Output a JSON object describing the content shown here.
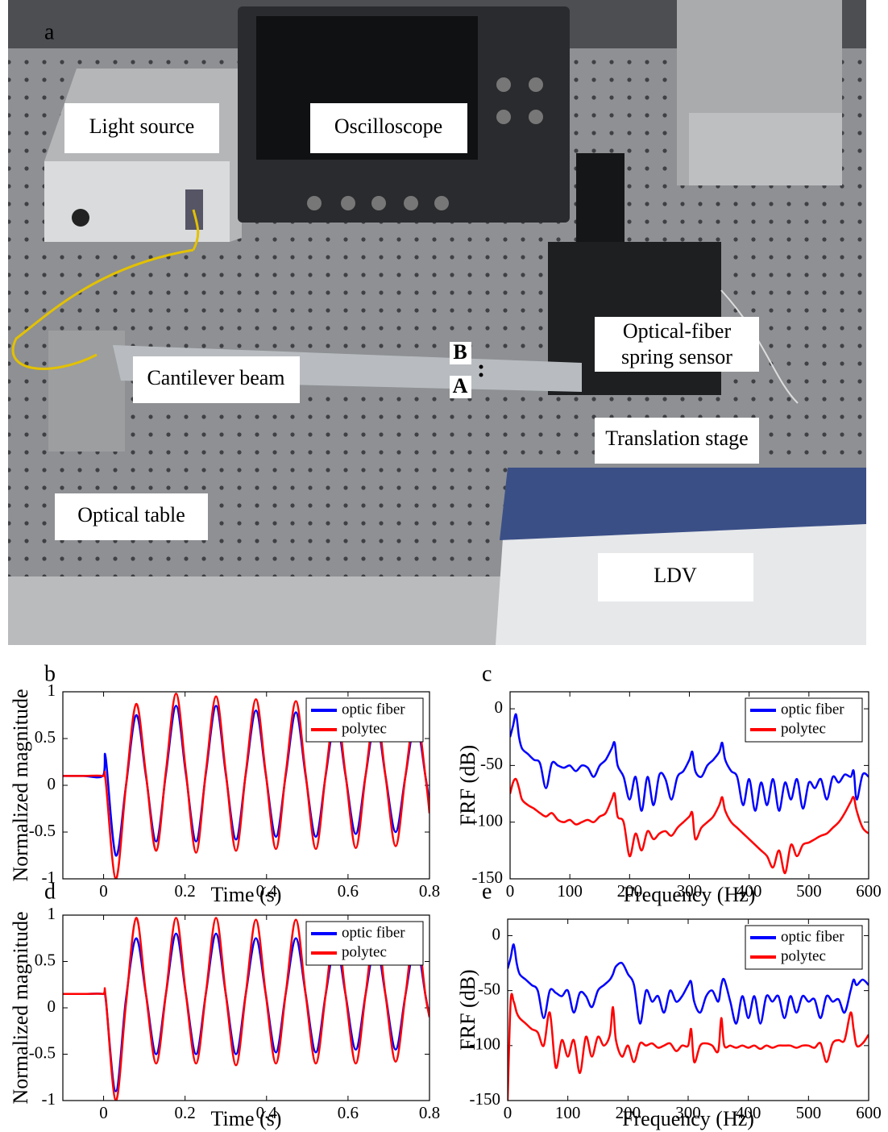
{
  "photo": {
    "panel_label": "a",
    "labels": [
      {
        "lines": [
          "Light source"
        ]
      },
      {
        "lines": [
          "Oscilloscope"
        ]
      },
      {
        "lines": [
          "Optical-fiber",
          "spring sensor"
        ]
      },
      {
        "lines": [
          "Cantilever beam"
        ]
      },
      {
        "lines": [
          "Translation stage"
        ]
      },
      {
        "lines": [
          "Optical table"
        ]
      },
      {
        "lines": [
          "LDV"
        ]
      }
    ],
    "points": [
      "B",
      "A"
    ]
  },
  "chart_data": [
    {
      "type": "line",
      "panel": "b",
      "xlabel": "Time (s)",
      "ylabel": "Normalized magnitude",
      "x": [
        -0.1,
        -0.05,
        -0.002,
        0.005,
        0.03,
        0.055,
        0.08,
        0.104,
        0.129,
        0.153,
        0.178,
        0.202,
        0.227,
        0.251,
        0.276,
        0.3,
        0.325,
        0.349,
        0.374,
        0.398,
        0.423,
        0.447,
        0.472,
        0.496,
        0.521,
        0.545,
        0.57,
        0.594,
        0.619,
        0.643,
        0.668,
        0.692,
        0.717,
        0.741,
        0.766,
        0.79,
        0.8
      ],
      "xlim": [
        -0.1,
        0.8
      ],
      "xticks": [
        0,
        0.2,
        0.4,
        0.6,
        0.8
      ],
      "ylim": [
        -1,
        1
      ],
      "yticks": [
        -1,
        -0.5,
        0,
        0.5,
        1
      ],
      "legend": "upper right",
      "series": [
        {
          "name": "optic fiber",
          "color": "#0000ff",
          "values": [
            0.1,
            0.1,
            0.1,
            0.3,
            -0.75,
            0.0,
            0.75,
            0.1,
            -0.6,
            0.12,
            0.85,
            0.12,
            -0.6,
            0.12,
            0.85,
            0.12,
            -0.58,
            0.12,
            0.8,
            0.12,
            -0.55,
            0.1,
            0.78,
            0.1,
            -0.55,
            0.1,
            0.72,
            0.1,
            -0.52,
            0.1,
            0.7,
            0.1,
            -0.5,
            0.1,
            0.68,
            0.1,
            -0.2
          ]
        },
        {
          "name": "polytec",
          "color": "#ff0000",
          "values": [
            0.1,
            0.1,
            0.1,
            0.05,
            -1,
            0.0,
            0.87,
            0.12,
            -0.7,
            0.15,
            0.98,
            0.15,
            -0.72,
            0.14,
            0.95,
            0.14,
            -0.7,
            0.13,
            0.92,
            0.13,
            -0.68,
            0.12,
            0.9,
            0.12,
            -0.68,
            0.11,
            0.85,
            0.11,
            -0.67,
            0.1,
            0.82,
            0.1,
            -0.65,
            0.1,
            0.8,
            0.1,
            -0.3
          ]
        }
      ]
    },
    {
      "type": "line",
      "panel": "c",
      "xlabel": "Frequency (Hz)",
      "ylabel": "FRF (dB)",
      "x": [
        0,
        5,
        10,
        15,
        20,
        30,
        40,
        50,
        60,
        70,
        80,
        90,
        100,
        110,
        120,
        130,
        140,
        150,
        160,
        170,
        175,
        180,
        190,
        200,
        210,
        220,
        230,
        240,
        250,
        260,
        270,
        280,
        290,
        300,
        305,
        310,
        320,
        330,
        340,
        350,
        355,
        360,
        370,
        380,
        390,
        400,
        410,
        420,
        430,
        440,
        450,
        460,
        470,
        480,
        490,
        500,
        510,
        520,
        530,
        540,
        550,
        560,
        570,
        575,
        580,
        590,
        600
      ],
      "xlim": [
        0,
        600
      ],
      "xticks": [
        0,
        100,
        200,
        300,
        400,
        500,
        600
      ],
      "ylim": [
        -150,
        15
      ],
      "yticks": [
        -150,
        -100,
        -50,
        0
      ],
      "legend": "upper right",
      "series": [
        {
          "name": "optic fiber",
          "color": "#0000ff",
          "values": [
            -25,
            -15,
            -5,
            -25,
            -35,
            -40,
            -45,
            -48,
            -70,
            -48,
            -50,
            -52,
            -50,
            -55,
            -50,
            -52,
            -60,
            -50,
            -45,
            -35,
            -30,
            -50,
            -60,
            -80,
            -60,
            -90,
            -60,
            -85,
            -58,
            -62,
            -80,
            -60,
            -55,
            -45,
            -38,
            -55,
            -60,
            -50,
            -45,
            -38,
            -30,
            -45,
            -55,
            -60,
            -85,
            -62,
            -90,
            -65,
            -85,
            -62,
            -90,
            -65,
            -80,
            -62,
            -88,
            -65,
            -70,
            -62,
            -80,
            -60,
            -65,
            -58,
            -60,
            -55,
            -80,
            -58,
            -60
          ]
        },
        {
          "name": "polytec",
          "color": "#ff0000",
          "values": [
            -75,
            -65,
            -62,
            -70,
            -80,
            -85,
            -88,
            -92,
            -95,
            -92,
            -98,
            -100,
            -98,
            -102,
            -100,
            -98,
            -100,
            -95,
            -92,
            -80,
            -75,
            -95,
            -100,
            -130,
            -110,
            -125,
            -108,
            -115,
            -110,
            -108,
            -112,
            -105,
            -100,
            -95,
            -92,
            -115,
            -105,
            -100,
            -95,
            -85,
            -78,
            -90,
            -100,
            -105,
            -110,
            -115,
            -120,
            -125,
            -130,
            -140,
            -125,
            -145,
            -120,
            -130,
            -120,
            -118,
            -115,
            -112,
            -110,
            -105,
            -100,
            -92,
            -82,
            -78,
            -90,
            -105,
            -110
          ]
        }
      ]
    },
    {
      "type": "line",
      "panel": "d",
      "xlabel": "Time (s)",
      "ylabel": "Normalized magnitude",
      "x": [
        -0.1,
        -0.05,
        -0.002,
        0.005,
        0.03,
        0.055,
        0.08,
        0.104,
        0.129,
        0.153,
        0.178,
        0.202,
        0.227,
        0.251,
        0.276,
        0.3,
        0.325,
        0.349,
        0.374,
        0.398,
        0.423,
        0.447,
        0.472,
        0.496,
        0.521,
        0.545,
        0.57,
        0.594,
        0.619,
        0.643,
        0.668,
        0.692,
        0.717,
        0.741,
        0.766,
        0.79,
        0.8
      ],
      "xlim": [
        -0.1,
        0.8
      ],
      "xticks": [
        0,
        0.2,
        0.4,
        0.6,
        0.8
      ],
      "ylim": [
        -1,
        1
      ],
      "yticks": [
        -1,
        -0.5,
        0,
        0.5,
        1
      ],
      "legend": "upper right",
      "series": [
        {
          "name": "optic fiber",
          "color": "#0000ff",
          "values": [
            0.15,
            0.15,
            0.15,
            0.1,
            -0.9,
            0.1,
            0.75,
            0.15,
            -0.5,
            0.15,
            0.8,
            0.15,
            -0.5,
            0.15,
            0.8,
            0.15,
            -0.5,
            0.15,
            0.75,
            0.15,
            -0.48,
            0.15,
            0.75,
            0.15,
            -0.48,
            0.14,
            0.7,
            0.14,
            -0.45,
            0.14,
            0.7,
            0.14,
            -0.45,
            0.14,
            0.7,
            0.14,
            -0.1
          ]
        },
        {
          "name": "polytec",
          "color": "#ff0000",
          "values": [
            0.15,
            0.15,
            0.15,
            0.12,
            -1,
            0.05,
            0.97,
            0.15,
            -0.6,
            0.15,
            0.97,
            0.15,
            -0.6,
            0.15,
            0.97,
            0.15,
            -0.62,
            0.15,
            0.95,
            0.15,
            -0.6,
            0.15,
            0.95,
            0.15,
            -0.6,
            0.14,
            0.92,
            0.14,
            -0.6,
            0.14,
            0.9,
            0.14,
            -0.58,
            0.14,
            0.9,
            0.14,
            -0.1
          ]
        }
      ]
    },
    {
      "type": "line",
      "panel": "e",
      "xlabel": "Frequency (Hz)",
      "ylabel": "FRF (dB)",
      "x": [
        0,
        5,
        10,
        15,
        20,
        30,
        40,
        50,
        60,
        70,
        80,
        90,
        100,
        110,
        120,
        130,
        140,
        150,
        160,
        170,
        175,
        180,
        190,
        200,
        210,
        220,
        230,
        240,
        250,
        260,
        270,
        280,
        290,
        300,
        305,
        310,
        320,
        330,
        340,
        350,
        355,
        360,
        370,
        380,
        390,
        400,
        410,
        420,
        430,
        440,
        450,
        460,
        470,
        480,
        490,
        500,
        510,
        520,
        530,
        540,
        550,
        560,
        570,
        575,
        580,
        590,
        600
      ],
      "xlim": [
        0,
        600
      ],
      "xticks": [
        0,
        100,
        200,
        300,
        400,
        500,
        600
      ],
      "ylim": [
        -150,
        15
      ],
      "yticks": [
        -150,
        -100,
        -50,
        0
      ],
      "legend": "upper right",
      "series": [
        {
          "name": "optic fiber",
          "color": "#0000ff",
          "values": [
            -30,
            -20,
            -8,
            -25,
            -35,
            -40,
            -45,
            -50,
            -75,
            -50,
            -52,
            -55,
            -50,
            -70,
            -52,
            -55,
            -65,
            -50,
            -45,
            -40,
            -35,
            -28,
            -25,
            -35,
            -45,
            -80,
            -50,
            -60,
            -55,
            -70,
            -50,
            -60,
            -55,
            -45,
            -42,
            -60,
            -70,
            -55,
            -50,
            -60,
            -45,
            -40,
            -60,
            -80,
            -55,
            -75,
            -55,
            -80,
            -55,
            -60,
            -55,
            -75,
            -55,
            -70,
            -55,
            -60,
            -58,
            -75,
            -55,
            -60,
            -58,
            -70,
            -50,
            -40,
            -45,
            -40,
            -45
          ]
        },
        {
          "name": "polytec",
          "color": "#ff0000",
          "values": [
            -150,
            -60,
            -60,
            -70,
            -75,
            -80,
            -85,
            -88,
            -100,
            -70,
            -120,
            -95,
            -110,
            -95,
            -125,
            -92,
            -110,
            -92,
            -100,
            -90,
            -65,
            -95,
            -110,
            -100,
            -115,
            -98,
            -100,
            -98,
            -102,
            -100,
            -98,
            -105,
            -100,
            -100,
            -85,
            -115,
            -100,
            -98,
            -100,
            -105,
            -75,
            -100,
            -100,
            -102,
            -100,
            -102,
            -100,
            -103,
            -100,
            -102,
            -100,
            -100,
            -100,
            -102,
            -100,
            -100,
            -102,
            -98,
            -115,
            -98,
            -95,
            -95,
            -70,
            -85,
            -100,
            -98,
            -90
          ]
        }
      ]
    }
  ]
}
